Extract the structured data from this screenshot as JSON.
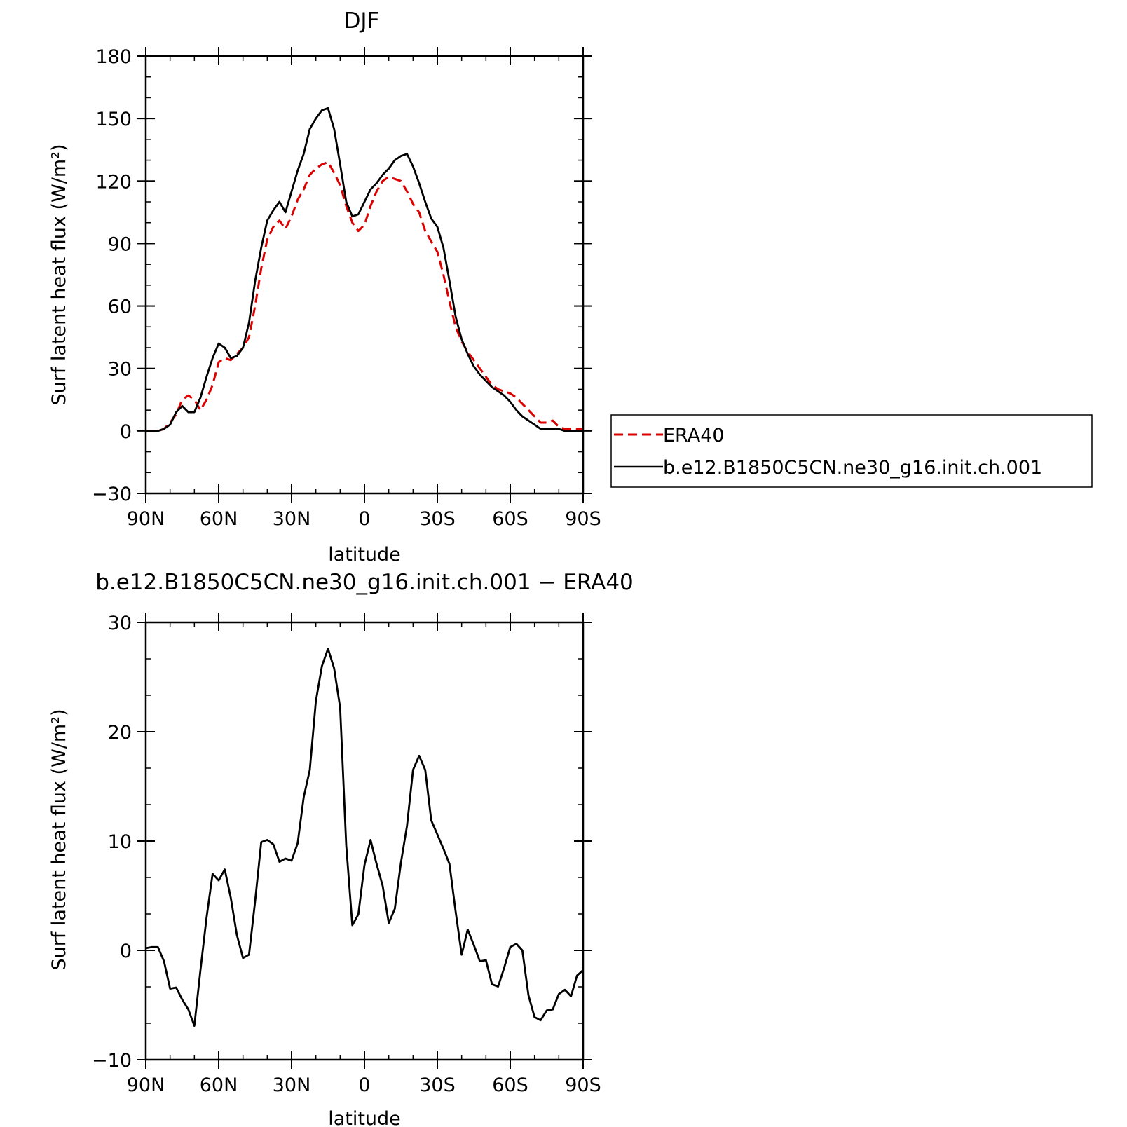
{
  "chart_data": [
    {
      "type": "line",
      "title": "DJF",
      "xlabel": "latitude",
      "ylabel": "Surf latent heat flux (W/m²)",
      "ylim": [
        -30,
        180
      ],
      "yticks": [
        -30,
        0,
        30,
        60,
        90,
        120,
        150,
        180
      ],
      "xlim": [
        90,
        -90
      ],
      "xticks": [
        90,
        60,
        30,
        0,
        -30,
        -60,
        -90
      ],
      "xticklabels": [
        "90N",
        "60N",
        "30N",
        "0",
        "30S",
        "60S",
        "90S"
      ],
      "grid": false,
      "legend": "right, outside plot",
      "x": [
        90,
        87.5,
        85,
        82.5,
        80,
        77.5,
        75,
        72.5,
        70,
        67.5,
        65,
        62.5,
        60,
        57.5,
        55,
        52.5,
        50,
        47.5,
        45,
        42.5,
        40,
        37.5,
        35,
        32.5,
        30,
        27.5,
        25,
        22.5,
        20,
        17.5,
        15,
        12.5,
        10,
        7.5,
        5,
        2.5,
        0,
        -2.5,
        -5,
        -7.5,
        -10,
        -12.5,
        -15,
        -17.5,
        -20,
        -22.5,
        -25,
        -27.5,
        -30,
        -32.5,
        -35,
        -37.5,
        -40,
        -42.5,
        -45,
        -47.5,
        -50,
        -52.5,
        -55,
        -57.5,
        -60,
        -62.5,
        -65,
        -67.5,
        -70,
        -72.5,
        -75,
        -77.5,
        -80,
        -82.5,
        -85,
        -87.5,
        -90
      ],
      "series": [
        {
          "name": "ERA40",
          "color": "#dd0000",
          "dash": "dashed",
          "values": [
            0,
            0,
            0,
            1,
            4,
            8,
            15,
            17,
            15,
            10,
            15,
            22,
            33,
            35,
            34,
            37,
            40,
            45,
            60,
            78,
            92,
            98,
            101,
            97,
            103,
            111,
            116,
            123,
            126,
            128,
            129,
            124,
            118,
            108,
            100,
            96,
            99,
            108,
            115,
            120,
            122,
            121,
            120,
            115,
            109,
            105,
            96,
            91,
            86,
            75,
            62,
            50,
            43,
            38,
            34,
            30,
            26,
            22,
            20,
            19,
            18,
            16,
            13,
            10,
            7,
            4,
            4,
            5,
            2,
            1,
            1,
            1,
            1
          ]
        },
        {
          "name": "b.e12.B1850C5CN.ne30_g16.init.ch.001",
          "color": "#000000",
          "dash": "solid",
          "values": [
            0,
            0,
            0,
            1,
            3,
            9,
            12,
            9,
            9,
            16,
            26,
            35,
            42,
            40,
            35,
            36,
            40,
            52,
            72,
            88,
            101,
            106,
            110,
            105,
            115,
            125,
            133,
            145,
            150,
            154,
            155,
            145,
            128,
            110,
            103,
            104,
            110,
            116,
            119,
            123,
            126,
            130,
            132,
            133,
            127,
            119,
            110,
            102,
            98,
            88,
            72,
            55,
            44,
            37,
            31,
            27,
            24,
            21,
            19,
            17,
            14,
            10,
            7,
            5,
            3,
            1,
            1,
            1,
            1,
            0,
            0,
            0,
            0
          ]
        }
      ]
    },
    {
      "type": "line",
      "title": "b.e12.B1850C5CN.ne30_g16.init.ch.001 − ERA40",
      "xlabel": "latitude",
      "ylabel": "Surf latent heat flux (W/m²)",
      "ylim": [
        -10,
        30
      ],
      "yticks": [
        -10,
        0,
        10,
        20,
        30
      ],
      "xlim": [
        90,
        -90
      ],
      "xticks": [
        90,
        60,
        30,
        0,
        -30,
        -60,
        -90
      ],
      "xticklabels": [
        "90N",
        "60N",
        "30N",
        "0",
        "30S",
        "60S",
        "90S"
      ],
      "grid": false,
      "x": [
        90,
        87.5,
        85,
        82.5,
        80,
        77.5,
        75,
        72.5,
        70,
        67.5,
        65,
        62.5,
        60,
        57.5,
        55,
        52.5,
        50,
        47.5,
        45,
        42.5,
        40,
        37.5,
        35,
        32.5,
        30,
        27.5,
        25,
        22.5,
        20,
        17.5,
        15,
        12.5,
        10,
        7.5,
        5,
        2.5,
        0,
        -2.5,
        -5,
        -7.5,
        -10,
        -12.5,
        -15,
        -17.5,
        -20,
        -22.5,
        -25,
        -27.5,
        -30,
        -32.5,
        -35,
        -37.5,
        -40,
        -42.5,
        -45,
        -47.5,
        -50,
        -52.5,
        -55,
        -57.5,
        -60,
        -62.5,
        -65,
        -67.5,
        -70,
        -72.5,
        -75,
        -77.5,
        -80,
        -82.5,
        -85,
        -87.5,
        -90
      ],
      "series": [
        {
          "color": "#000000",
          "dash": "solid",
          "values": [
            0.2,
            0.3,
            0.3,
            -1,
            -3.5,
            -3.4,
            -4.5,
            -5.4,
            -6.9,
            -1.8,
            3,
            7,
            6.4,
            7.4,
            4.8,
            1.4,
            -0.7,
            -0.4,
            4.5,
            9.9,
            10.1,
            9.7,
            8.1,
            8.4,
            8.2,
            9.8,
            14,
            16.5,
            22.8,
            26,
            27.6,
            25.8,
            22.2,
            9.6,
            2.3,
            3.3,
            7.8,
            10.1,
            7.9,
            5.9,
            2.5,
            3.8,
            8,
            11.4,
            16.5,
            17.8,
            16.5,
            11.9,
            10.6,
            9.3,
            7.9,
            3.6,
            -0.4,
            1.9,
            0.5,
            -1,
            -0.9,
            -3.1,
            -3.3,
            -1.6,
            0.3,
            0.6,
            0,
            -4.1,
            -6.1,
            -6.4,
            -5.5,
            -5.4,
            -4,
            -3.6,
            -4.2,
            -2.3,
            -1.8
          ]
        }
      ]
    }
  ]
}
